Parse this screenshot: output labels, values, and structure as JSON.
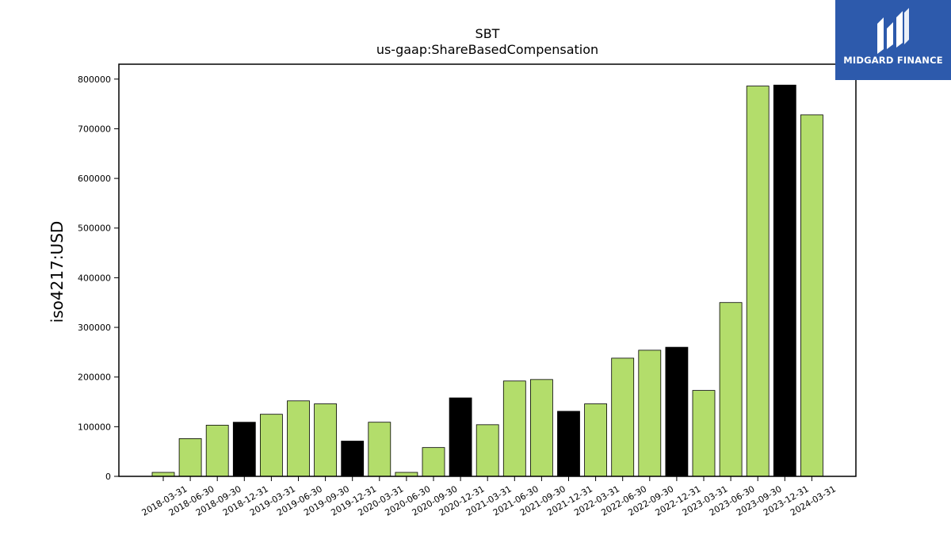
{
  "chart_data": {
    "type": "bar",
    "title": "SBT",
    "subtitle": "us-gaap:ShareBasedCompensation",
    "ylabel": "iso4217:USD",
    "xlabel": "",
    "ylim": [
      0,
      830000
    ],
    "yticks": [
      0,
      100000,
      200000,
      300000,
      400000,
      500000,
      600000,
      700000,
      800000
    ],
    "grid": false,
    "colors": {
      "quarter": "#b3dd6b",
      "year_end": "#000000",
      "edge": "#000000"
    },
    "categories": [
      "2018-03-31",
      "2018-06-30",
      "2018-09-30",
      "2018-12-31",
      "2019-03-31",
      "2019-06-30",
      "2019-09-30",
      "2019-12-31",
      "2020-03-31",
      "2020-06-30",
      "2020-09-30",
      "2020-12-31",
      "2021-03-31",
      "2021-06-30",
      "2021-09-30",
      "2021-12-31",
      "2022-03-31",
      "2022-06-30",
      "2022-09-30",
      "2022-12-31",
      "2023-03-31",
      "2023-06-30",
      "2023-09-30",
      "2023-12-31",
      "2024-03-31"
    ],
    "values": [
      8000,
      76000,
      103000,
      109000,
      125000,
      152000,
      146000,
      71000,
      109000,
      8000,
      58000,
      158000,
      104000,
      192000,
      195000,
      131000,
      146000,
      238000,
      254000,
      260000,
      173000,
      350000,
      786000,
      788000,
      728000
    ],
    "year_end": [
      false,
      false,
      false,
      true,
      false,
      false,
      false,
      true,
      false,
      false,
      false,
      true,
      false,
      false,
      false,
      true,
      false,
      false,
      false,
      true,
      false,
      false,
      false,
      true,
      false
    ]
  },
  "logo": {
    "text": "MIDGARD FINANCE",
    "icon": "midgard-logo-icon",
    "background": "#2d5aac"
  }
}
